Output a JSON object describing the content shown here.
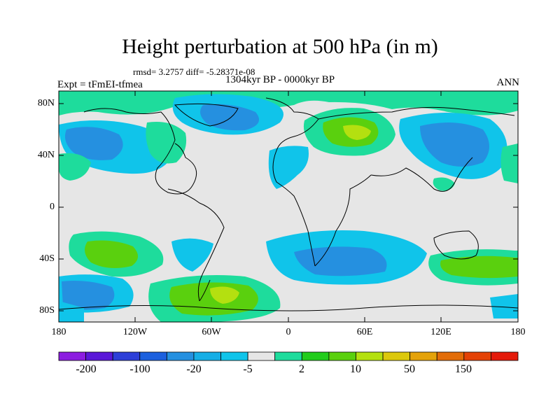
{
  "title": "Height perturbation at 500 hPa (in m)",
  "stats": "rmsd= 3.2757 diff= -5.28371e-08",
  "period": "1304kyr BP - 0000kyr BP",
  "expt": "Expt = tFmEI-tfmea",
  "season": "ANN",
  "lat_labels": [
    "80N",
    "40N",
    "0",
    "40S",
    "80S"
  ],
  "lon_labels": [
    "180",
    "120W",
    "60W",
    "0",
    "60E",
    "120E",
    "180"
  ],
  "colorbar": {
    "labels": [
      "-200",
      "-100",
      "-20",
      "-5",
      "2",
      "10",
      "50",
      "150"
    ],
    "colors": [
      "#8c1de0",
      "#5a18d8",
      "#2d3fd8",
      "#1c60de",
      "#2590e0",
      "#16aee6",
      "#10c4ea",
      "#e6e6e6",
      "#1edc9c",
      "#22cc1c",
      "#5ad00e",
      "#b4e010",
      "#dcc80c",
      "#e4a20a",
      "#e26c08",
      "#e44206",
      "#e41a0a"
    ]
  },
  "colors": {
    "neutral": "#e6e6e6",
    "light_blue": "#10c4ea",
    "blue": "#2590e0",
    "teal_green": "#1edc9c",
    "green": "#5ad00e",
    "yellow_green": "#b4e010"
  }
}
